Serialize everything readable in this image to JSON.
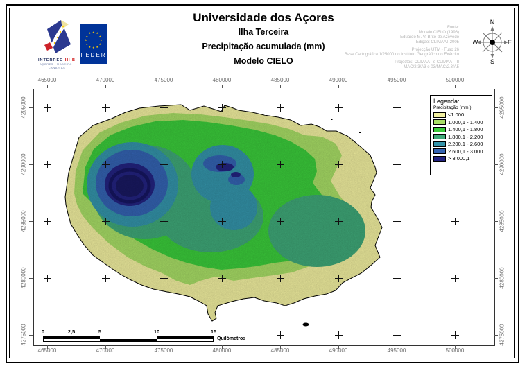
{
  "header": {
    "title": "Universidade dos Açores",
    "subtitle": "Ilha Terceira",
    "map_title": "Precipitação acumulada (mm)",
    "model": "Modelo CIELO"
  },
  "logos": {
    "interreg": {
      "name": "INTERREG",
      "edition": "III B",
      "regions": "AÇORES · MADEIRA · CANARIAS"
    },
    "feder": {
      "name": "FEDER",
      "bg_color": "#003399",
      "star_color": "#FFCC00"
    }
  },
  "source_info": {
    "lines": [
      "Fonte:",
      "Modelo CIELO (1996)",
      "Eduardo M. V. Brito de Azevedo",
      "Edição: CLIMAAT 2005"
    ],
    "projection_lines": [
      "Projecção UTM - Fuso 26",
      "Base Cartográfica 1/25000 do Instituto Geográfico do Exército"
    ],
    "project_lines": [
      "Projectos: CLIMAAT e CLIMAAT_II",
      "MAC/2.3/A3 e 03/MAC/2.3/A5"
    ]
  },
  "compass": {
    "n": "N",
    "e": "E",
    "s": "S",
    "w": "W"
  },
  "map_axes": {
    "x_labels": [
      "465000",
      "470000",
      "475000",
      "480000",
      "485000",
      "490000",
      "495000",
      "500000"
    ],
    "y_labels": [
      "4295000",
      "4290000",
      "4285000",
      "4280000",
      "4275000"
    ]
  },
  "legend": {
    "title": "Legenda:",
    "subtitle": "Precipitação (mm )",
    "items": [
      {
        "label": "<1.000",
        "color": "#F2F0A0"
      },
      {
        "label": "1.000,1 - 1.400",
        "color": "#A8DE66"
      },
      {
        "label": "1.400,1 - 1.800",
        "color": "#3BCC3B"
      },
      {
        "label": "1.800,1 - 2.200",
        "color": "#3FA878"
      },
      {
        "label": "2.200,1 - 2.600",
        "color": "#3494AA"
      },
      {
        "label": "2.600,1 - 3.000",
        "color": "#3463B2"
      },
      {
        "label": "> 3.000,1",
        "color": "#232380"
      }
    ]
  },
  "scalebar": {
    "labels": [
      "0",
      "2,5",
      "5",
      "10",
      "15"
    ],
    "unit": "Quilómetros"
  }
}
